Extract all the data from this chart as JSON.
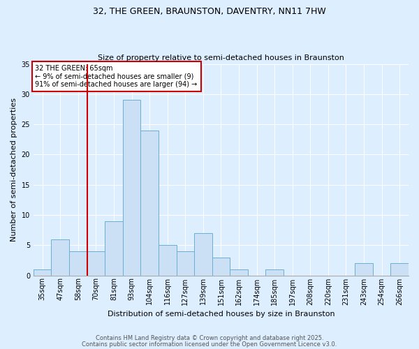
{
  "title1": "32, THE GREEN, BRAUNSTON, DAVENTRY, NN11 7HW",
  "title2": "Size of property relative to semi-detached houses in Braunston",
  "xlabel": "Distribution of semi-detached houses by size in Braunston",
  "ylabel": "Number of semi-detached properties",
  "categories": [
    "35sqm",
    "47sqm",
    "58sqm",
    "70sqm",
    "81sqm",
    "93sqm",
    "104sqm",
    "116sqm",
    "127sqm",
    "139sqm",
    "151sqm",
    "162sqm",
    "174sqm",
    "185sqm",
    "197sqm",
    "208sqm",
    "220sqm",
    "231sqm",
    "243sqm",
    "254sqm",
    "266sqm"
  ],
  "values": [
    1,
    6,
    4,
    4,
    9,
    29,
    24,
    5,
    4,
    7,
    3,
    1,
    0,
    1,
    0,
    0,
    0,
    0,
    2,
    0,
    2
  ],
  "bar_color": "#cce0f5",
  "bar_edge_color": "#6aaed6",
  "vline_x": 2.5,
  "annotation_text": "32 THE GREEN: 65sqm\n← 9% of semi-detached houses are smaller (9)\n91% of semi-detached houses are larger (94) →",
  "annotation_box_color": "#ffffff",
  "annotation_box_edge": "#cc0000",
  "vline_color": "#cc0000",
  "ylim": [
    0,
    35
  ],
  "yticks": [
    0,
    5,
    10,
    15,
    20,
    25,
    30,
    35
  ],
  "footer1": "Contains HM Land Registry data © Crown copyright and database right 2025.",
  "footer2": "Contains public sector information licensed under the Open Government Licence v3.0.",
  "bg_color": "#ddeeff",
  "plot_bg_color": "#ddeeff",
  "grid_color": "#ffffff",
  "title_fontsize": 9,
  "subtitle_fontsize": 8,
  "ylabel_fontsize": 8,
  "xlabel_fontsize": 8,
  "tick_fontsize": 7,
  "annot_fontsize": 7,
  "footer_fontsize": 6,
  "footer_color": "#555555"
}
